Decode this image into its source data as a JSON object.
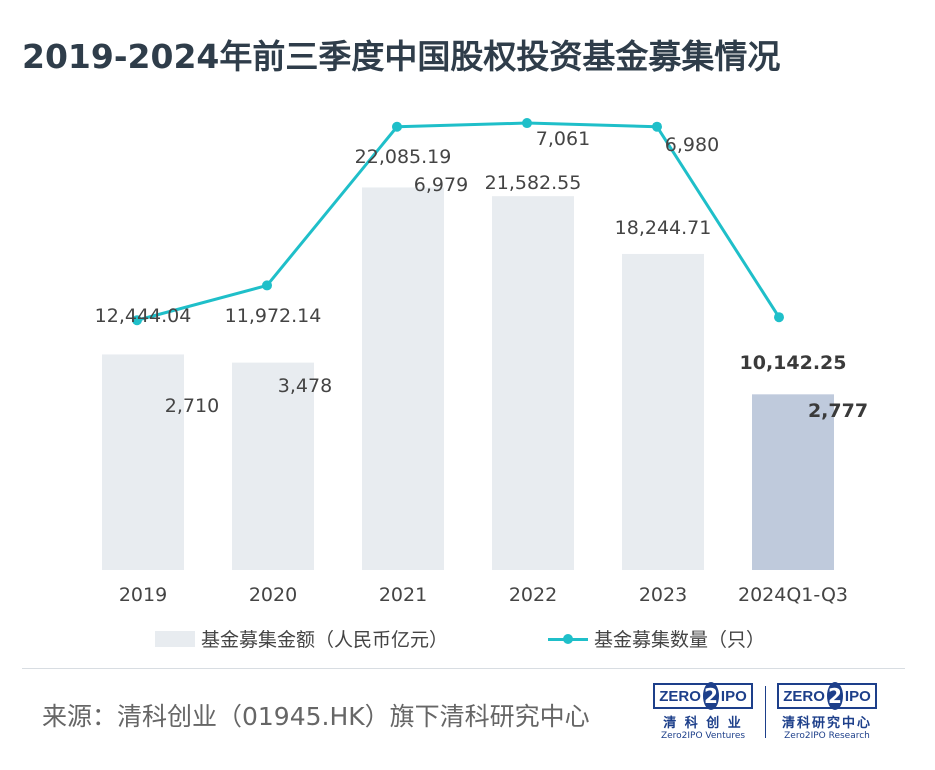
{
  "title": "2019-2024年前三季度中国股权投资基金募集情况",
  "chart_data": {
    "type": "bar",
    "categories": [
      "2019",
      "2020",
      "2021",
      "2022",
      "2023",
      "2024Q1-Q3"
    ],
    "series": [
      {
        "name": "基金募集金额（人民币亿元）",
        "type": "bar",
        "values": [
          12444.04,
          11972.14,
          22085.19,
          21582.55,
          18244.71,
          10142.25
        ],
        "labels": [
          "12,444.04",
          "11,972.14",
          "22,085.19",
          "21,582.55",
          "18,244.71",
          "10,142.25"
        ]
      },
      {
        "name": "基金募集数量（只）",
        "type": "line",
        "values": [
          2710,
          3478,
          6979,
          7061,
          6980,
          2777
        ],
        "labels": [
          "2,710",
          "3,478",
          "6,979",
          "7,061",
          "6,980",
          "2,777"
        ]
      }
    ],
    "bar_ylim": [
      0,
      28000
    ],
    "line_ylim": [
      -2800,
      7900
    ],
    "highlight_index": 5
  },
  "colors": {
    "bar": "#e8ecf0",
    "bar_highlight": "#bfcadc",
    "line": "#1fbfc9",
    "label": "#444444",
    "title": "#2f3d4a"
  },
  "legend": {
    "bar_label": "基金募集金额（人民币亿元）",
    "line_label": "基金募集数量（只）"
  },
  "source": "来源：清科创业（01945.HK）旗下清科研究中心",
  "logos": [
    {
      "mark_left": "ZERO",
      "mark_mid": "2",
      "mark_right": "IPO",
      "cn": "清 科 创 业",
      "en": "Zero2IPO Ventures"
    },
    {
      "mark_left": "ZERO",
      "mark_mid": "2",
      "mark_right": "IPO",
      "cn": "清科研究中心",
      "en": "Zero2IPO Research"
    }
  ]
}
